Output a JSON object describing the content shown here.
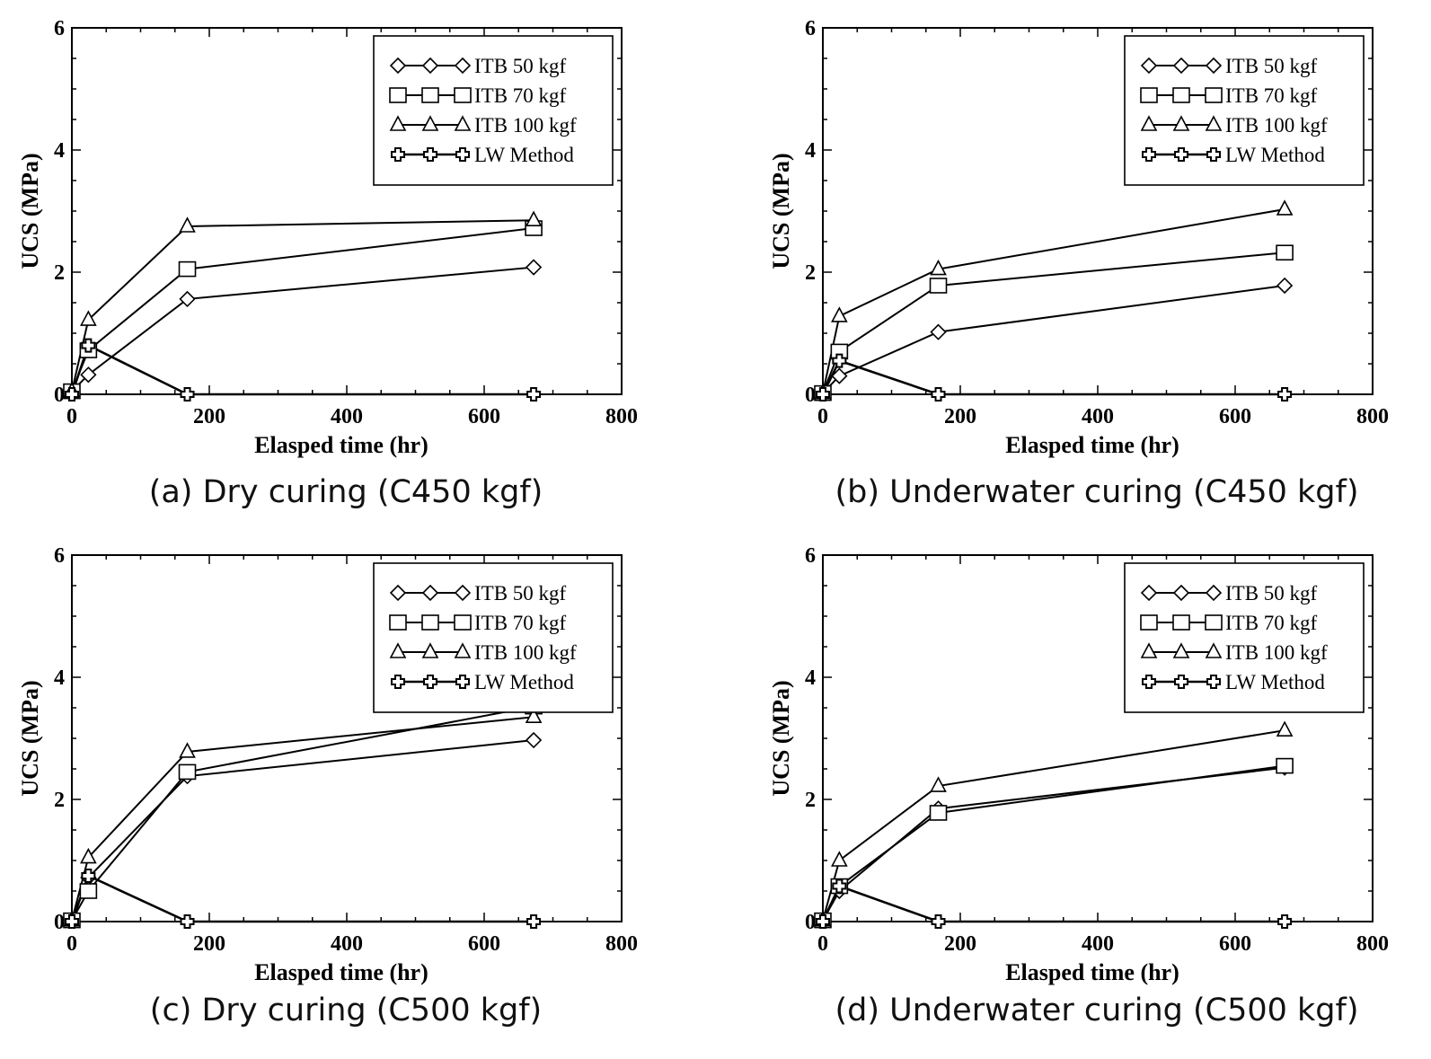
{
  "chart_data": [
    {
      "type": "line",
      "caption": "(a) Dry curing (C450 kgf)",
      "xlabel": "Elasped time (hr)",
      "ylabel": "UCS (MPa)",
      "xlim": [
        0,
        800
      ],
      "ylim": [
        0,
        6
      ],
      "xticks": [
        "0",
        "200",
        "400",
        "600",
        "800"
      ],
      "yticks": [
        "0",
        "2",
        "4",
        "6"
      ],
      "legend_position": "top-right",
      "series": [
        {
          "name": "ITB 50 kgf",
          "marker": "diamond",
          "x": [
            0,
            24,
            168,
            672
          ],
          "y": [
            0.05,
            0.32,
            1.56,
            2.08
          ]
        },
        {
          "name": "ITB 70 kgf",
          "marker": "square",
          "x": [
            0,
            24,
            168,
            672
          ],
          "y": [
            0.05,
            0.72,
            2.05,
            2.72
          ]
        },
        {
          "name": "ITB 100 kgf",
          "marker": "triangle",
          "x": [
            0,
            24,
            168,
            672
          ],
          "y": [
            0.05,
            1.22,
            2.75,
            2.85
          ]
        },
        {
          "name": "LW Method",
          "marker": "cross",
          "x": [
            0,
            24,
            168,
            672
          ],
          "y": [
            0.0,
            0.8,
            0.0,
            0.0
          ]
        }
      ]
    },
    {
      "type": "line",
      "caption": "(b) Underwater curing (C450 kgf)",
      "xlabel": "Elasped time (hr)",
      "ylabel": "UCS (MPa)",
      "xlim": [
        0,
        800
      ],
      "ylim": [
        0,
        6
      ],
      "xticks": [
        "0",
        "200",
        "400",
        "600",
        "800"
      ],
      "yticks": [
        "0",
        "2",
        "4",
        "6"
      ],
      "legend_position": "top-right",
      "series": [
        {
          "name": "ITB 50 kgf",
          "marker": "diamond",
          "x": [
            0,
            24,
            168,
            672
          ],
          "y": [
            0.02,
            0.3,
            1.02,
            1.78
          ]
        },
        {
          "name": "ITB 70 kgf",
          "marker": "square",
          "x": [
            0,
            24,
            168,
            672
          ],
          "y": [
            0.02,
            0.7,
            1.78,
            2.32
          ]
        },
        {
          "name": "ITB 100 kgf",
          "marker": "triangle",
          "x": [
            0,
            24,
            168,
            672
          ],
          "y": [
            0.02,
            1.28,
            2.05,
            3.03
          ]
        },
        {
          "name": "LW Method",
          "marker": "cross",
          "x": [
            0,
            24,
            168,
            672
          ],
          "y": [
            0.0,
            0.55,
            0.0,
            0.0
          ]
        }
      ]
    },
    {
      "type": "line",
      "caption": "(c) Dry curing (C500 kgf)",
      "xlabel": "Elasped time (hr)",
      "ylabel": "UCS (MPa)",
      "xlim": [
        0,
        800
      ],
      "ylim": [
        0,
        6
      ],
      "xticks": [
        "0",
        "200",
        "400",
        "600",
        "800"
      ],
      "yticks": [
        "0",
        "2",
        "4",
        "6"
      ],
      "legend_position": "top-right",
      "series": [
        {
          "name": "ITB 50 kgf",
          "marker": "diamond",
          "x": [
            0,
            24,
            168,
            672
          ],
          "y": [
            0.02,
            0.72,
            2.38,
            2.97
          ]
        },
        {
          "name": "ITB 70 kgf",
          "marker": "square",
          "x": [
            0,
            24,
            168,
            672
          ],
          "y": [
            0.02,
            0.5,
            2.45,
            3.52
          ]
        },
        {
          "name": "ITB 100 kgf",
          "marker": "triangle",
          "x": [
            0,
            24,
            168,
            672
          ],
          "y": [
            0.02,
            1.05,
            2.78,
            3.35
          ]
        },
        {
          "name": "LW Method",
          "marker": "cross",
          "x": [
            0,
            24,
            168,
            672
          ],
          "y": [
            0.0,
            0.75,
            0.0,
            0.0
          ]
        }
      ]
    },
    {
      "type": "line",
      "caption": "(d) Underwater curing (C500 kgf)",
      "xlabel": "Elasped time (hr)",
      "ylabel": "UCS (MPa)",
      "xlim": [
        0,
        800
      ],
      "ylim": [
        0,
        6
      ],
      "xticks": [
        "0",
        "200",
        "400",
        "600",
        "800"
      ],
      "yticks": [
        "0",
        "2",
        "4",
        "6"
      ],
      "legend_position": "top-right",
      "series": [
        {
          "name": "ITB 50 kgf",
          "marker": "diamond",
          "x": [
            0,
            24,
            168,
            672
          ],
          "y": [
            0.02,
            0.5,
            1.85,
            2.52
          ]
        },
        {
          "name": "ITB 70 kgf",
          "marker": "square",
          "x": [
            0,
            24,
            168,
            672
          ],
          "y": [
            0.02,
            0.58,
            1.78,
            2.55
          ]
        },
        {
          "name": "ITB 100 kgf",
          "marker": "triangle",
          "x": [
            0,
            24,
            168,
            672
          ],
          "y": [
            0.02,
            1.0,
            2.22,
            3.13
          ]
        },
        {
          "name": "LW Method",
          "marker": "cross",
          "x": [
            0,
            24,
            168,
            672
          ],
          "y": [
            0.0,
            0.58,
            0.0,
            0.0
          ]
        }
      ]
    }
  ]
}
